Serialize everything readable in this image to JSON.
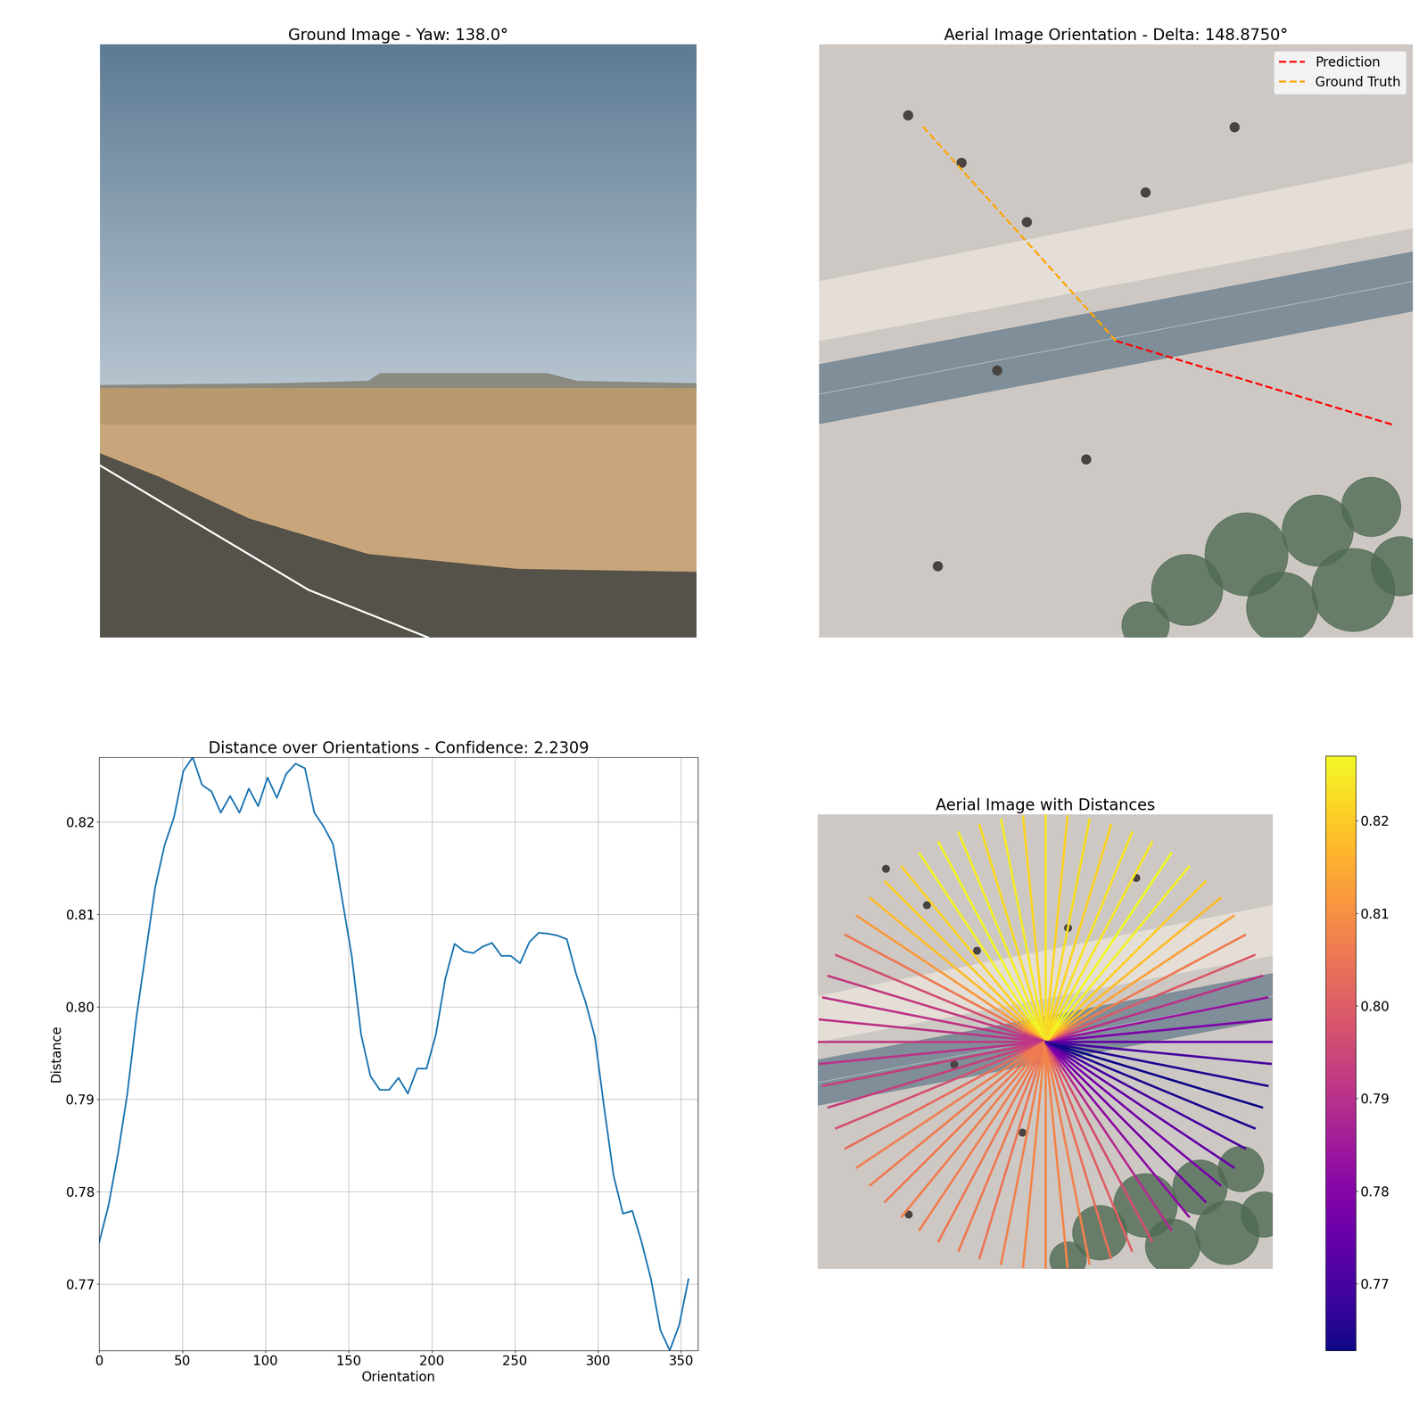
{
  "chart_data": [
    {
      "type": "image",
      "title": "Ground Image - Yaw: 138.0°"
    },
    {
      "type": "image",
      "title": "Aerial Image Orientation - Delta: 148.8750°",
      "legend": "upper right",
      "series": [
        {
          "name": "Prediction",
          "color": "red",
          "line_style": "dashed",
          "angle": 343.125
        },
        {
          "name": "Ground Truth",
          "color": "orange",
          "line_style": "dashed",
          "angle": 132.0
        }
      ]
    },
    {
      "type": "line",
      "title": "Distance over Orientations - Confidence: 2.2309",
      "x_label": "Orientation",
      "y_label": "Distance",
      "color": "#1f77b4",
      "grid": true,
      "x": [
        0,
        5.625,
        11.25,
        16.875,
        22.5,
        28.125,
        33.75,
        39.375,
        45,
        50.625,
        56.25,
        61.875,
        67.5,
        73.125,
        78.75,
        84.375,
        90,
        95.625,
        101.25,
        106.875,
        112.5,
        118.125,
        123.75,
        129.375,
        135,
        140.625,
        146.25,
        151.875,
        157.5,
        163.125,
        168.75,
        174.375,
        180,
        185.625,
        191.25,
        196.875,
        202.5,
        208.125,
        213.75,
        219.375,
        225,
        230.625,
        236.25,
        241.875,
        247.5,
        253.125,
        258.75,
        264.375,
        270,
        275.625,
        281.25,
        286.875,
        292.5,
        298.125,
        303.75,
        309.375,
        315,
        320.625,
        326.25,
        331.875,
        337.5,
        343.125,
        348.75,
        354.375
      ],
      "values": [
        0.7745,
        0.7785,
        0.784,
        0.7905,
        0.799,
        0.806,
        0.813,
        0.8175,
        0.8205,
        0.8255,
        0.827,
        0.824,
        0.8233,
        0.821,
        0.8228,
        0.821,
        0.8236,
        0.8217,
        0.8248,
        0.8226,
        0.8252,
        0.8263,
        0.8258,
        0.821,
        0.8195,
        0.8176,
        0.8115,
        0.8055,
        0.797,
        0.7925,
        0.791,
        0.791,
        0.7923,
        0.7906,
        0.7933,
        0.7933,
        0.797,
        0.803,
        0.8068,
        0.806,
        0.8058,
        0.8065,
        0.8069,
        0.8055,
        0.8055,
        0.8047,
        0.807,
        0.808,
        0.8079,
        0.8077,
        0.8073,
        0.8035,
        0.8005,
        0.7967,
        0.789,
        0.7817,
        0.7776,
        0.7779,
        0.7745,
        0.7705,
        0.765,
        0.7628,
        0.7655,
        0.7705
      ],
      "xlim": [
        0,
        360
      ],
      "ylim": [
        0.7628,
        0.827
      ],
      "xticks": [
        0,
        50,
        100,
        150,
        200,
        250,
        300,
        350
      ],
      "yticks": [
        0.77,
        0.78,
        0.79,
        {
          "value": 0.8,
          "label": "0.80"
        },
        0.81,
        0.82
      ]
    },
    {
      "type": "image",
      "title": "Aerial Image with Distances",
      "color": "plasma",
      "colorbar_range": [
        0.7628,
        0.827
      ],
      "colorbar_ticks": [
        0.77,
        0.78,
        0.79,
        {
          "value": 0.8,
          "label": "0.80"
        },
        0.81,
        0.82
      ]
    }
  ]
}
